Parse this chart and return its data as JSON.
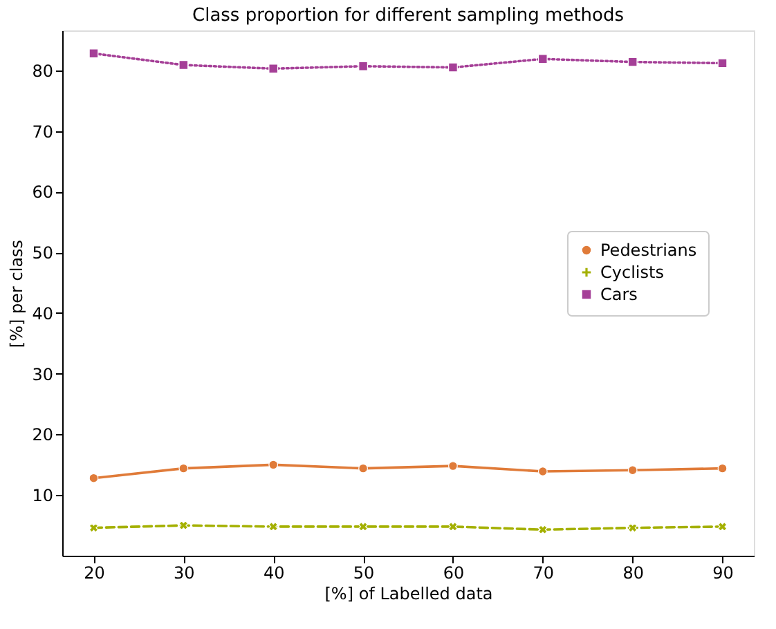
{
  "chart_data": {
    "type": "line",
    "title": "Class proportion for different sampling methods",
    "xlabel": "[%] of Labelled data",
    "ylabel": "[%] per class",
    "x": [
      20,
      30,
      40,
      50,
      60,
      70,
      80,
      90
    ],
    "series": [
      {
        "name": "Pedestrians",
        "color": "#e07b39",
        "marker": "circle",
        "line_style": "solid",
        "values": [
          12.8,
          14.4,
          15.0,
          14.4,
          14.8,
          13.9,
          14.1,
          14.4
        ]
      },
      {
        "name": "Cyclists",
        "color": "#a4b000",
        "marker": "cross",
        "line_style": "dashed",
        "values": [
          4.6,
          5.0,
          4.8,
          4.8,
          4.8,
          4.3,
          4.6,
          4.8
        ]
      },
      {
        "name": "Cars",
        "color": "#a53f97",
        "marker": "square",
        "line_style": "dotted",
        "values": [
          82.8,
          80.9,
          80.3,
          80.7,
          80.5,
          81.9,
          81.4,
          81.2
        ]
      }
    ],
    "xlim": [
      16.5,
      93.5
    ],
    "xticks": [
      20,
      30,
      40,
      50,
      60,
      70,
      80,
      90
    ],
    "ylim": [
      0,
      86.6
    ],
    "yticks": [
      10,
      20,
      30,
      40,
      50,
      60,
      70,
      80
    ],
    "grid": false,
    "legend": "right"
  }
}
